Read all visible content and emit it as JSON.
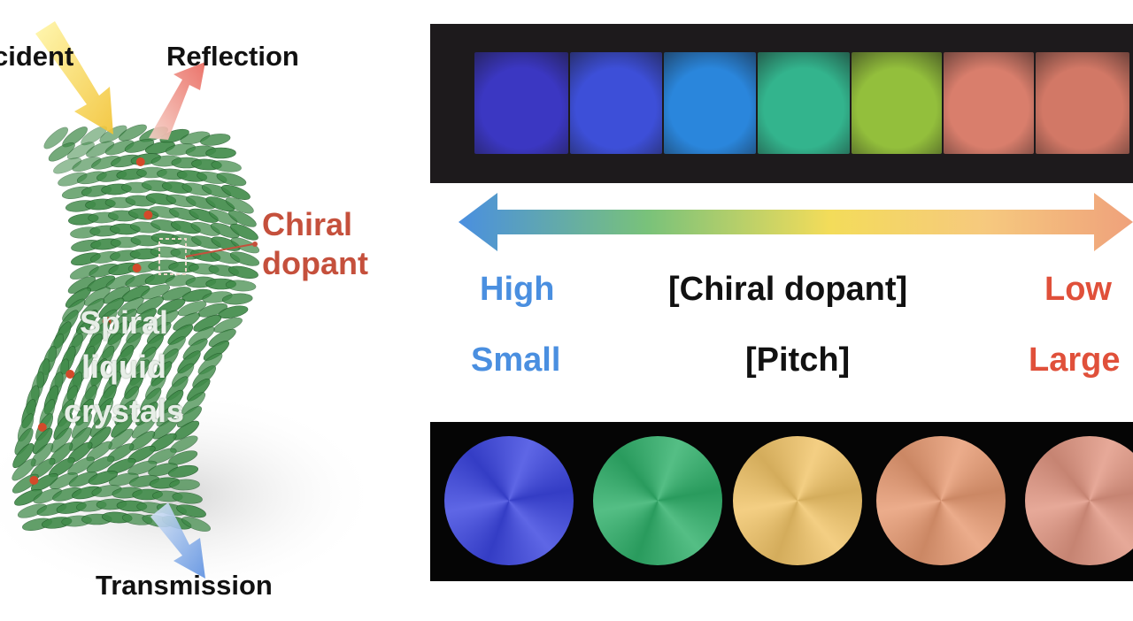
{
  "illustration": {
    "incident_label": "cident",
    "reflection_label": "Reflection",
    "chiral_dopant_label": [
      "Chiral",
      "dopant"
    ],
    "spiral_label": [
      "Spiral",
      "liquid",
      "crystals"
    ],
    "transmission_label": "Transmission"
  },
  "scale": {
    "high": "High",
    "low": "Low",
    "small": "Small",
    "large": "Large",
    "chiral_dopant": "[Chiral dopant]",
    "pitch": "[Pitch]"
  },
  "colors": {
    "blue": "#4a8fe0",
    "red": "#e0503a",
    "chiral_red": "#c5503c",
    "crystal_green": "#3f8a48",
    "dopant_red": "#d34a2a",
    "panel_dark": "#1d1a1c"
  },
  "films": [
    {
      "color": "#3b37c2"
    },
    {
      "color": "#3d4fd8"
    },
    {
      "color": "#2a86dc"
    },
    {
      "color": "#33b48d"
    },
    {
      "color": "#93bf3c"
    },
    {
      "color": "#d97e6c"
    },
    {
      "color": "#d27866"
    }
  ],
  "discs": [
    {
      "color": "#3b45e0"
    },
    {
      "color": "#2fb06a"
    },
    {
      "color": "#f1c468"
    },
    {
      "color": "#e79a72"
    },
    {
      "color": "#e19682"
    }
  ]
}
